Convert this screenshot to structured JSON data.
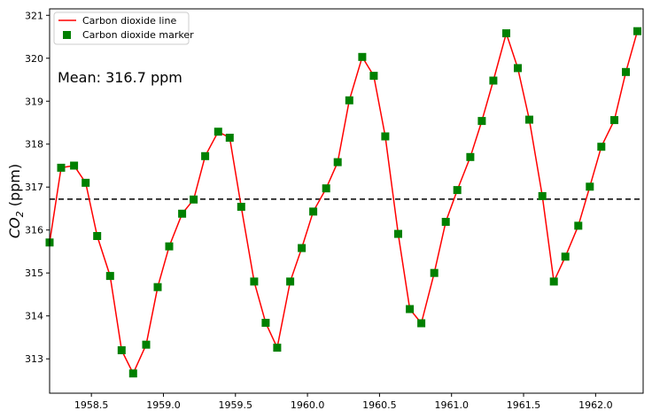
{
  "chart_data": {
    "type": "line",
    "xlabel": "",
    "ylabel": "CO",
    "ylabel_sub": "2",
    "ylabel_units": " (ppm)",
    "xlim": [
      1958.21,
      1962.33
    ],
    "ylim": [
      312.2,
      321.15
    ],
    "x_ticks": [
      1958.5,
      1959.0,
      1959.5,
      1960.0,
      1960.5,
      1961.0,
      1961.5,
      1962.0
    ],
    "x_tick_labels": [
      "1958.5",
      "1959.0",
      "1959.5",
      "1960.0",
      "1960.5",
      "1961.0",
      "1961.5",
      "1962.0"
    ],
    "y_ticks": [
      313,
      314,
      315,
      316,
      317,
      318,
      319,
      320,
      321
    ],
    "y_tick_labels": [
      "313",
      "314",
      "315",
      "316",
      "317",
      "318",
      "319",
      "320",
      "321"
    ],
    "annotation": "Mean: 316.7 ppm",
    "mean_line": 316.72,
    "legend": {
      "placement": "upper-left",
      "entries": [
        "Carbon dioxide line",
        "Carbon dioxide marker"
      ]
    },
    "colors": {
      "line": "#ff0000",
      "marker": "#008000",
      "mean_line": "#000000"
    },
    "series": [
      {
        "name": "Carbon dioxide",
        "x": [
          1958.21,
          1958.29,
          1958.38,
          1958.46,
          1958.54,
          1958.63,
          1958.71,
          1958.79,
          1958.88,
          1958.96,
          1959.04,
          1959.13,
          1959.21,
          1959.29,
          1959.38,
          1959.46,
          1959.54,
          1959.63,
          1959.71,
          1959.79,
          1959.88,
          1959.96,
          1960.04,
          1960.13,
          1960.21,
          1960.29,
          1960.38,
          1960.46,
          1960.54,
          1960.63,
          1960.71,
          1960.79,
          1960.88,
          1960.96,
          1961.04,
          1961.13,
          1961.21,
          1961.29,
          1961.38,
          1961.46,
          1961.54,
          1961.63,
          1961.71,
          1961.79,
          1961.88,
          1961.96,
          1962.04,
          1962.13,
          1962.21,
          1962.29
        ],
        "y": [
          315.71,
          317.45,
          317.5,
          317.1,
          315.86,
          314.93,
          313.2,
          312.66,
          313.33,
          314.67,
          315.62,
          316.38,
          316.71,
          317.72,
          318.29,
          318.15,
          316.54,
          314.8,
          313.84,
          313.26,
          314.8,
          315.58,
          316.43,
          316.97,
          317.58,
          319.02,
          320.03,
          319.59,
          318.18,
          315.91,
          314.16,
          313.83,
          315.0,
          316.19,
          316.93,
          317.7,
          318.54,
          319.48,
          320.58,
          319.77,
          318.57,
          316.79,
          314.8,
          315.38,
          316.1,
          317.01,
          317.94,
          318.56,
          319.68,
          320.63
        ]
      }
    ]
  }
}
